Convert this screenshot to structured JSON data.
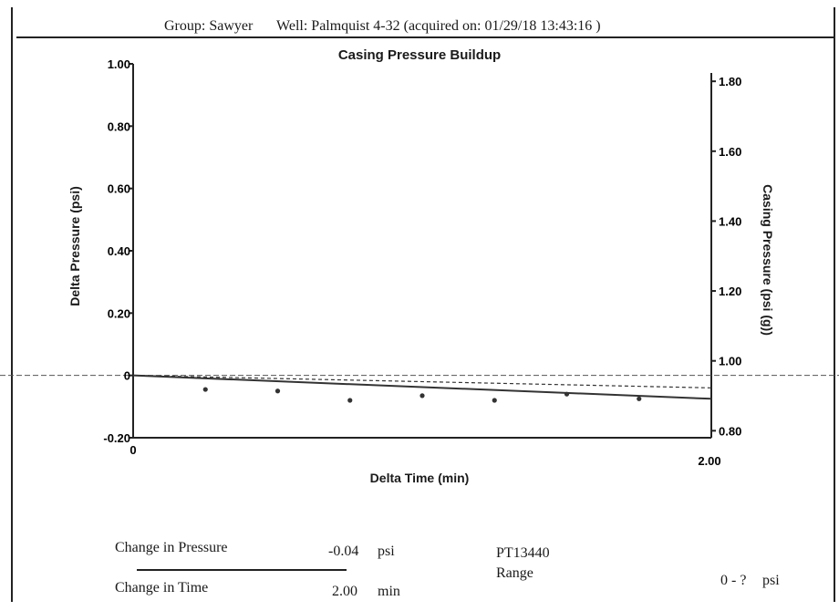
{
  "header": {
    "group": "Group: Sawyer",
    "well": "Well: Palmquist 4-32 (acquired on: 01/29/18 13:43:16 )"
  },
  "chart_data": {
    "type": "line",
    "title": "Casing Pressure Buildup",
    "xlabel": "Delta Time (min)",
    "ylabel": "Delta Pressure (psi)",
    "y2label": "Casing Pressure (psi (g))",
    "xlim": [
      0,
      2.0
    ],
    "ylim": [
      -0.2,
      1.0
    ],
    "y2lim": [
      0.78,
      1.85
    ],
    "x_ticks": [
      "0",
      "2.00"
    ],
    "y_ticks": [
      "1.00",
      "0.80",
      "0.60",
      "0.40",
      "0.20",
      "0",
      "-0.20"
    ],
    "y_tick_values": [
      1.0,
      0.8,
      0.6,
      0.4,
      0.2,
      0,
      -0.2
    ],
    "y2_ticks": [
      "1.80",
      "1.60",
      "1.40",
      "1.20",
      "1.00",
      "0.80"
    ],
    "y2_tick_values": [
      1.8,
      1.6,
      1.4,
      1.2,
      1.0,
      0.8
    ],
    "grid": false,
    "series": [
      {
        "style": "line",
        "x": [
          0,
          2.0
        ],
        "y": [
          0,
          -0.075
        ]
      },
      {
        "style": "dashed",
        "x": [
          0,
          2.0
        ],
        "y": [
          0,
          -0.04
        ]
      },
      {
        "style": "points",
        "x": [
          0.25,
          0.5,
          0.75,
          1.0,
          1.25,
          1.5,
          1.75
        ],
        "y": [
          -0.045,
          -0.05,
          -0.08,
          -0.065,
          -0.08,
          -0.06,
          -0.075
        ]
      }
    ]
  },
  "footer": {
    "change_pressure_label": "Change in Pressure",
    "change_pressure_value": "-0.04",
    "change_pressure_unit": "psi",
    "change_time_label": "Change in Time",
    "change_time_value": "2.00",
    "change_time_unit": "min",
    "sensor": "PT13440",
    "range_label": "Range",
    "range_value": "0 - ?",
    "range_unit": "psi"
  }
}
